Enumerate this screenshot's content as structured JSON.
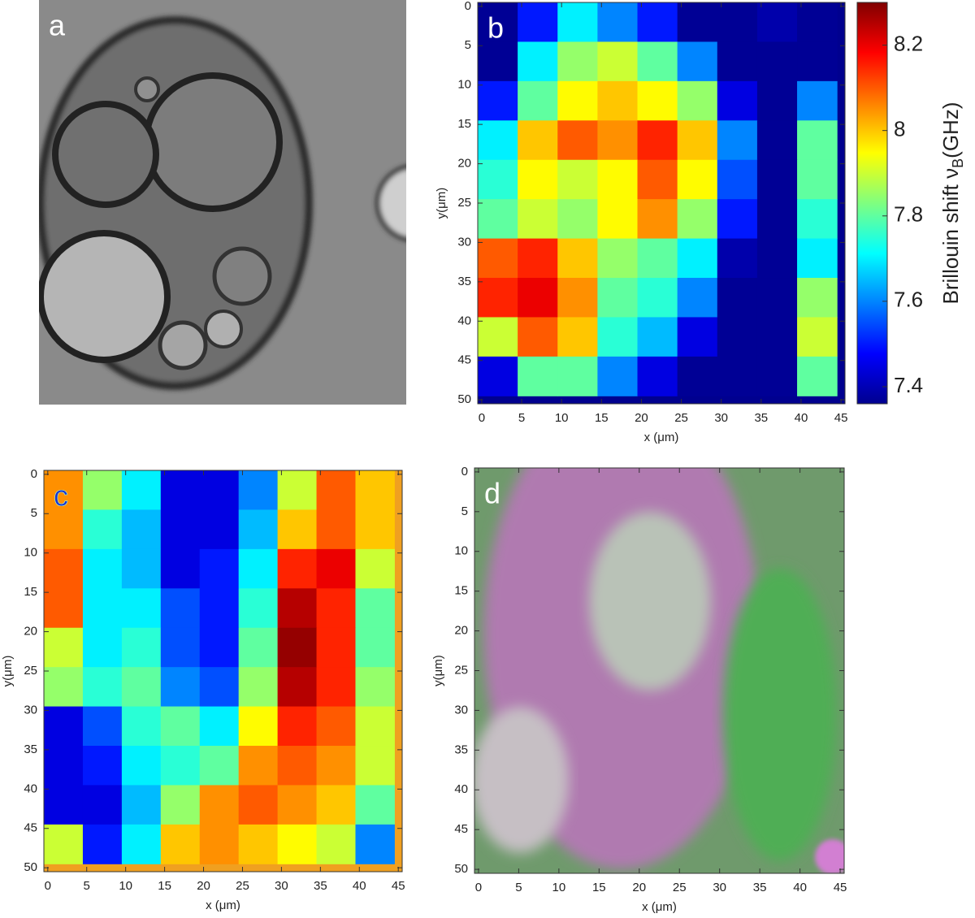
{
  "chart_data": [
    {
      "type": "image",
      "label": "a"
    },
    {
      "type": "heatmap",
      "label": "b",
      "xlabel": "x (μm)",
      "ylabel": "y(μm)",
      "xlim": [
        -0.5,
        45.5
      ],
      "ylim": [
        -0.5,
        50.5
      ],
      "xticks": [
        0,
        5,
        10,
        15,
        20,
        25,
        30,
        35,
        40,
        45
      ],
      "yticks": [
        0,
        5,
        10,
        15,
        20,
        25,
        30,
        35,
        40,
        45,
        50
      ],
      "x": [
        2,
        7,
        12,
        17,
        22,
        27,
        32,
        37,
        42
      ],
      "y": [
        2,
        7,
        12,
        17,
        22,
        27,
        32,
        37,
        42,
        47
      ],
      "values": [
        [
          7.38,
          7.5,
          7.7,
          7.6,
          7.5,
          7.38,
          7.38,
          7.4,
          7.38
        ],
        [
          7.38,
          7.7,
          7.85,
          7.9,
          7.8,
          7.6,
          7.38,
          7.38,
          7.38
        ],
        [
          7.5,
          7.8,
          7.95,
          8.0,
          7.95,
          7.85,
          7.45,
          7.38,
          7.6
        ],
        [
          7.7,
          8.0,
          8.1,
          8.05,
          8.15,
          8.0,
          7.6,
          7.38,
          7.8
        ],
        [
          7.75,
          7.95,
          7.9,
          7.95,
          8.1,
          7.95,
          7.55,
          7.38,
          7.8
        ],
        [
          7.8,
          7.9,
          7.85,
          7.95,
          8.05,
          7.85,
          7.5,
          7.38,
          7.75
        ],
        [
          8.1,
          8.15,
          8.0,
          7.85,
          7.8,
          7.7,
          7.4,
          7.38,
          7.7
        ],
        [
          8.15,
          8.2,
          8.05,
          7.8,
          7.75,
          7.6,
          7.38,
          7.38,
          7.85
        ],
        [
          7.9,
          8.1,
          8.0,
          7.75,
          7.65,
          7.45,
          7.38,
          7.38,
          7.9
        ],
        [
          7.45,
          7.8,
          7.8,
          7.6,
          7.45,
          7.38,
          7.38,
          7.38,
          7.8
        ]
      ],
      "colorbar": {
        "clim": [
          7.36,
          8.3
        ],
        "ticks": [
          7.4,
          7.6,
          7.8,
          8,
          8.2
        ],
        "label": "Brillouin shift ν",
        "label_sub": "B",
        "label_suffix": "(GHz)"
      }
    },
    {
      "type": "heatmap",
      "label": "c",
      "xlabel": "x (μm)",
      "ylabel": "y(μm)",
      "xlim": [
        -0.5,
        45.5
      ],
      "ylim": [
        -0.5,
        50.5
      ],
      "xticks": [
        0,
        5,
        10,
        15,
        20,
        25,
        30,
        35,
        40,
        45
      ],
      "yticks": [
        0,
        5,
        10,
        15,
        20,
        25,
        30,
        35,
        40,
        45,
        50
      ],
      "x": [
        2,
        7,
        12,
        17,
        22,
        27,
        32,
        37,
        42
      ],
      "y": [
        2,
        7,
        12,
        17,
        22,
        27,
        32,
        37,
        42,
        47
      ],
      "values": [
        [
          8.05,
          7.85,
          7.7,
          7.45,
          7.45,
          7.6,
          7.9,
          8.1,
          8.0
        ],
        [
          8.05,
          7.75,
          7.65,
          7.45,
          7.45,
          7.65,
          8.0,
          8.1,
          8.0
        ],
        [
          8.1,
          7.7,
          7.65,
          7.45,
          7.5,
          7.7,
          8.15,
          8.2,
          7.9
        ],
        [
          8.1,
          7.7,
          7.7,
          7.55,
          7.5,
          7.75,
          8.25,
          8.15,
          7.8
        ],
        [
          7.9,
          7.7,
          7.75,
          7.55,
          7.5,
          7.8,
          8.28,
          8.15,
          7.8
        ],
        [
          7.85,
          7.75,
          7.8,
          7.6,
          7.55,
          7.85,
          8.25,
          8.15,
          7.85
        ],
        [
          7.45,
          7.55,
          7.75,
          7.8,
          7.7,
          7.95,
          8.15,
          8.1,
          7.9
        ],
        [
          7.45,
          7.5,
          7.7,
          7.75,
          7.8,
          8.05,
          8.1,
          8.05,
          7.9
        ],
        [
          7.45,
          7.45,
          7.65,
          7.85,
          8.05,
          8.1,
          8.05,
          8.0,
          7.8
        ],
        [
          7.9,
          7.5,
          7.7,
          8.0,
          8.05,
          8.0,
          7.95,
          7.9,
          7.6
        ]
      ]
    },
    {
      "type": "image",
      "label": "d",
      "xlabel": "x (μm)",
      "ylabel": "y(μm)",
      "xlim": [
        -0.5,
        45.5
      ],
      "ylim": [
        -0.5,
        50.5
      ],
      "xticks": [
        0,
        5,
        10,
        15,
        20,
        25,
        30,
        35,
        40,
        45
      ],
      "yticks": [
        0,
        5,
        10,
        15,
        20,
        25,
        30,
        35,
        40,
        45,
        50
      ]
    }
  ]
}
